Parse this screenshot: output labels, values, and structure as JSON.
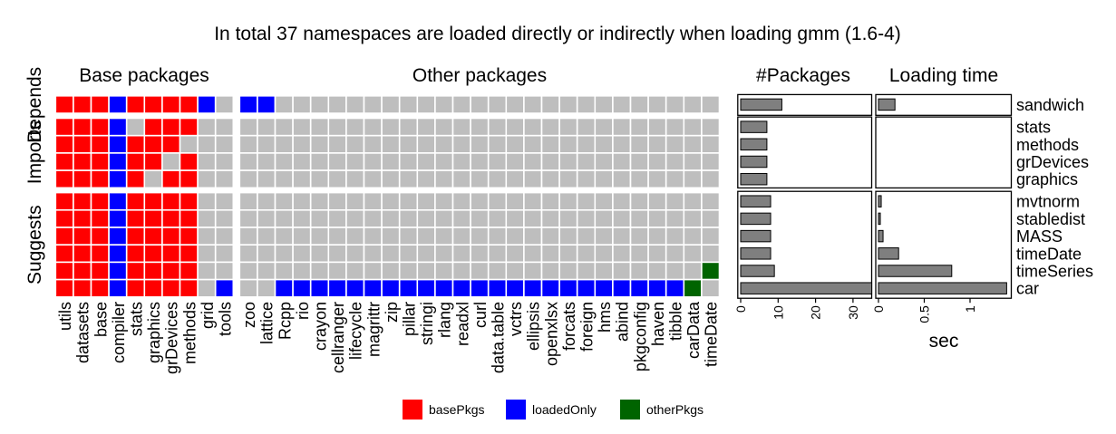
{
  "title": "In total 37 namespaces are loaded directly or indirectly when loading gmm (1.6-4)",
  "panel_titles": {
    "base": "Base packages",
    "other": "Other packages",
    "count": "#Packages",
    "time": "Loading time"
  },
  "row_groups": [
    "Depends",
    "Imports",
    "Suggests"
  ],
  "colors": {
    "basePkgs": "#ff0000",
    "loadedOnly": "#0000ff",
    "otherPkgs": "#006400",
    "none": "#bebebe",
    "bar": "#7f7f7f"
  },
  "legend": [
    {
      "key": "basePkgs",
      "label": "basePkgs"
    },
    {
      "key": "loadedOnly",
      "label": "loadedOnly"
    },
    {
      "key": "otherPkgs",
      "label": "otherPkgs"
    }
  ],
  "chart_data": {
    "type": "heatmap",
    "rows": [
      {
        "name": "sandwich",
        "group": "Depends",
        "count": 11,
        "time": 0.18
      },
      {
        "name": "stats",
        "group": "Imports",
        "count": 7,
        "time": 0.0
      },
      {
        "name": "methods",
        "group": "Imports",
        "count": 7,
        "time": 0.0
      },
      {
        "name": "grDevices",
        "group": "Imports",
        "count": 7,
        "time": 0.0
      },
      {
        "name": "graphics",
        "group": "Imports",
        "count": 7,
        "time": 0.0
      },
      {
        "name": "mvtnorm",
        "group": "Suggests",
        "count": 8,
        "time": 0.03
      },
      {
        "name": "stabledist",
        "group": "Suggests",
        "count": 8,
        "time": 0.02
      },
      {
        "name": "MASS",
        "group": "Suggests",
        "count": 8,
        "time": 0.05
      },
      {
        "name": "timeDate",
        "group": "Suggests",
        "count": 8,
        "time": 0.22
      },
      {
        "name": "timeSeries",
        "group": "Suggests",
        "count": 9,
        "time": 0.8
      },
      {
        "name": "car",
        "group": "Suggests",
        "count": 35,
        "time": 1.4
      }
    ],
    "base_columns": [
      "utils",
      "datasets",
      "base",
      "compiler",
      "stats",
      "graphics",
      "grDevices",
      "methods",
      "grid",
      "tools"
    ],
    "other_columns": [
      "zoo",
      "lattice",
      "Rcpp",
      "rio",
      "crayon",
      "cellranger",
      "lifecycle",
      "magrittr",
      "zip",
      "pillar",
      "stringi",
      "rlang",
      "readxl",
      "curl",
      "data.table",
      "vctrs",
      "ellipsis",
      "openxlsx",
      "forcats",
      "foreign",
      "hms",
      "abind",
      "pkgconfig",
      "haven",
      "tibble",
      "carData",
      "timeDate"
    ],
    "base_matrix": [
      "RRRBRRRRBN",
      "RRRBNRRRNN",
      "RRRBRRRNNN",
      "RRRBRRNRNN",
      "RRRBRNRRNN",
      "RRRBRRRRNN",
      "RRRBRRRRNN",
      "RRRBRRRRNN",
      "RRRBRRRRNN",
      "RRRBRRRRNN",
      "RRRBRRRRNB"
    ],
    "other_matrix": [
      "BBNNNNNNNNNNNNNNNNNNNNNNNNN",
      "NNNNNNNNNNNNNNNNNNNNNNNNNNN",
      "NNNNNNNNNNNNNNNNNNNNNNNNNNN",
      "NNNNNNNNNNNNNNNNNNNNNNNNNNN",
      "NNNNNNNNNNNNNNNNNNNNNNNNNNN",
      "NNNNNNNNNNNNNNNNNNNNNNNNNNN",
      "NNNNNNNNNNNNNNNNNNNNNNNNNNN",
      "NNNNNNNNNNNNNNNNNNNNNNNNNNN",
      "NNNNNNNNNNNNNNNNNNNNNNNNNNN",
      "NNNNNNNNNNNNNNNNNNNNNNNNNNG",
      "NNBBBBBBBBBBBBBBBBBBBBBBBGN"
    ],
    "count_axis": {
      "ticks": [
        0,
        10,
        20,
        30
      ],
      "range": [
        0,
        37
      ]
    },
    "time_axis": {
      "ticks": [
        0,
        0.5,
        1
      ],
      "tick_labels": [
        "0",
        "0.5",
        "1"
      ],
      "label": "sec",
      "range": [
        0,
        1.45
      ]
    }
  }
}
